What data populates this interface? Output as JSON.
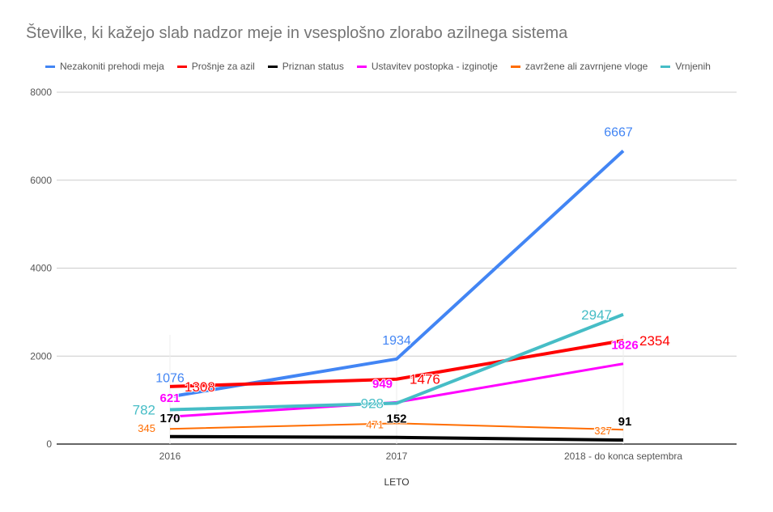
{
  "chart_data": {
    "type": "line",
    "title": "Številke, ki kažejo slab nadzor meje in vsesplošno zlorabo azilnega sistema",
    "xlabel": "LETO",
    "ylabel": "",
    "ylim": [
      0,
      8000
    ],
    "yticks": [
      0,
      2000,
      4000,
      6000,
      8000
    ],
    "categories": [
      "2016",
      "2017",
      "2018 - do konca septembra"
    ],
    "legend_position": "top",
    "grid": true,
    "series": [
      {
        "name": "Nezakoniti prehodi meja",
        "color": "#4285f4",
        "values": [
          1076,
          1934,
          6667
        ]
      },
      {
        "name": "Prošnje za azil",
        "color": "#ff0000",
        "values": [
          1308,
          1476,
          2354
        ]
      },
      {
        "name": "Priznan status",
        "color": "#000000",
        "values": [
          170,
          152,
          91
        ]
      },
      {
        "name": "Ustavitev postopka - izginotje",
        "color": "#ff00ff",
        "values": [
          621,
          949,
          1826
        ]
      },
      {
        "name": "zavržene ali zavrnjene vloge",
        "color": "#ff6d01",
        "values": [
          345,
          471,
          327
        ]
      },
      {
        "name": "Vrnjenih",
        "color": "#46bdc6",
        "values": [
          782,
          928,
          2947
        ]
      }
    ]
  }
}
